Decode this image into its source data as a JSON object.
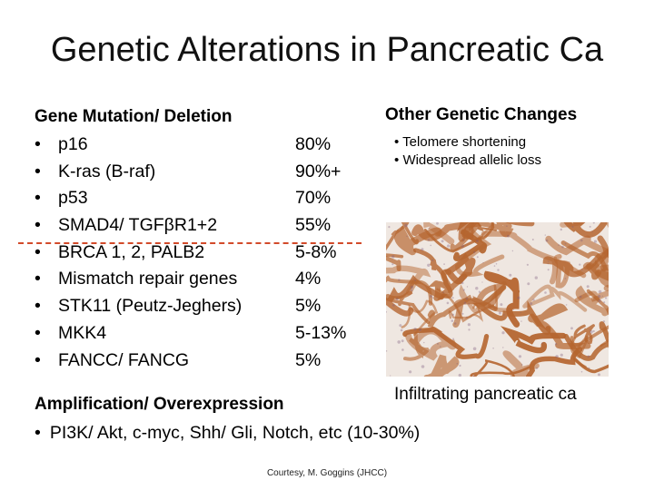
{
  "slide": {
    "title": "Genetic Alterations in Pancreatic Ca"
  },
  "left_panel": {
    "heading": "Gene Mutation/ Deletion",
    "bullet_char": "•",
    "items": [
      {
        "gene": "p16",
        "freq": "80%"
      },
      {
        "gene": "K-ras (B-raf)",
        "freq": "90%+"
      },
      {
        "gene": "p53",
        "freq": "70%"
      },
      {
        "gene": "SMAD4/ TGFβR1+2",
        "freq": "55%"
      },
      {
        "gene": "BRCA 1, 2, PALB2",
        "freq": "5-8%"
      },
      {
        "gene": "Mismatch repair genes",
        "freq": "4%"
      },
      {
        "gene": "STK11 (Peutz-Jeghers)",
        "freq": "5%"
      },
      {
        "gene": "MKK4",
        "freq": "5-13%"
      },
      {
        "gene": "FANCC/ FANCG",
        "freq": "5%"
      }
    ],
    "divider_color": "#d24a2a",
    "amplification_heading": "Amplification/ Overexpression",
    "amplification_item": "PI3K/ Akt, c-myc, Shh/ Gli, Notch, etc (10-30%)"
  },
  "right_panel": {
    "heading": "Other Genetic Changes",
    "items": [
      "Telomere shortening",
      "Widespread allelic loss"
    ],
    "image_caption": "Infiltrating pancreatic ca",
    "stain_color": "#b5652f"
  },
  "footer": {
    "courtesy": "Courtesy, M. Goggins (JHCC)"
  }
}
